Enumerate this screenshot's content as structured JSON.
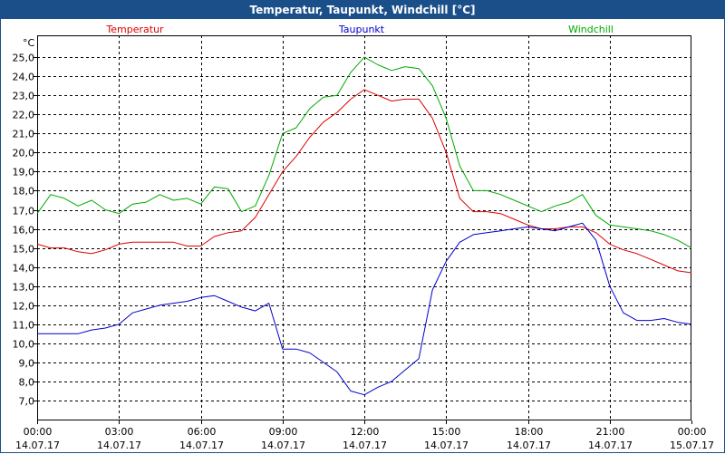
{
  "window": {
    "title": "Temperatur, Taupunkt, Windchill [°C]"
  },
  "chart_data": {
    "type": "line",
    "title": "Temperatur, Taupunkt, Windchill [°C]",
    "ylabel": "°C",
    "ylim": [
      6.0,
      26.0
    ],
    "xlim": [
      0,
      24
    ],
    "grid": true,
    "legend_position": "top",
    "y_ticks": [
      "7,0",
      "8,0",
      "9,0",
      "10,0",
      "11,0",
      "12,0",
      "13,0",
      "14,0",
      "15,0",
      "16,0",
      "17,0",
      "18,0",
      "19,0",
      "20,0",
      "21,0",
      "22,0",
      "23,0",
      "24,0",
      "25,0"
    ],
    "x_ticks": [
      {
        "time": "00:00",
        "date": "14.07.17"
      },
      {
        "time": "03:00",
        "date": "14.07.17"
      },
      {
        "time": "06:00",
        "date": "14.07.17"
      },
      {
        "time": "09:00",
        "date": "14.07.17"
      },
      {
        "time": "12:00",
        "date": "14.07.17"
      },
      {
        "time": "15:00",
        "date": "14.07.17"
      },
      {
        "time": "18:00",
        "date": "14.07.17"
      },
      {
        "time": "21:00",
        "date": "14.07.17"
      },
      {
        "time": "00:00",
        "date": "15.07.17"
      }
    ],
    "series": [
      {
        "name": "Temperatur",
        "color": "#dd0000",
        "points": [
          [
            0,
            15.2
          ],
          [
            0.5,
            15.0
          ],
          [
            1,
            15.0
          ],
          [
            1.5,
            14.8
          ],
          [
            2,
            14.7
          ],
          [
            2.5,
            14.9
          ],
          [
            3,
            15.2
          ],
          [
            3.5,
            15.3
          ],
          [
            4,
            15.3
          ],
          [
            4.5,
            15.3
          ],
          [
            5,
            15.3
          ],
          [
            5.5,
            15.1
          ],
          [
            6,
            15.1
          ],
          [
            6.5,
            15.6
          ],
          [
            7,
            15.8
          ],
          [
            7.5,
            15.9
          ],
          [
            8,
            16.6
          ],
          [
            8.5,
            17.8
          ],
          [
            9,
            19.0
          ],
          [
            9.5,
            19.8
          ],
          [
            10,
            20.8
          ],
          [
            10.5,
            21.6
          ],
          [
            11,
            22.1
          ],
          [
            11.5,
            22.8
          ],
          [
            12,
            23.3
          ],
          [
            12.5,
            23.0
          ],
          [
            13,
            22.7
          ],
          [
            13.5,
            22.8
          ],
          [
            14,
            22.8
          ],
          [
            14.5,
            21.8
          ],
          [
            15,
            20.0
          ],
          [
            15.5,
            17.6
          ],
          [
            16,
            16.9
          ],
          [
            16.5,
            16.9
          ],
          [
            17,
            16.8
          ],
          [
            17.5,
            16.5
          ],
          [
            18,
            16.2
          ],
          [
            18.5,
            16.0
          ],
          [
            19,
            16.0
          ],
          [
            19.5,
            16.1
          ],
          [
            20,
            16.1
          ],
          [
            20.5,
            15.8
          ],
          [
            21,
            15.2
          ],
          [
            21.5,
            14.9
          ],
          [
            22,
            14.7
          ],
          [
            22.5,
            14.4
          ],
          [
            23,
            14.1
          ],
          [
            23.5,
            13.8
          ],
          [
            24,
            13.7
          ]
        ]
      },
      {
        "name": "Taupunkt",
        "color": "#0000cc",
        "points": [
          [
            0,
            10.5
          ],
          [
            0.5,
            10.5
          ],
          [
            1,
            10.5
          ],
          [
            1.5,
            10.5
          ],
          [
            2,
            10.7
          ],
          [
            2.5,
            10.8
          ],
          [
            3,
            11.0
          ],
          [
            3.5,
            11.6
          ],
          [
            4,
            11.8
          ],
          [
            4.5,
            12.0
          ],
          [
            5,
            12.1
          ],
          [
            5.5,
            12.2
          ],
          [
            6,
            12.4
          ],
          [
            6.5,
            12.5
          ],
          [
            7,
            12.2
          ],
          [
            7.5,
            11.9
          ],
          [
            8,
            11.7
          ],
          [
            8.5,
            12.1
          ],
          [
            9,
            9.7
          ],
          [
            9.5,
            9.7
          ],
          [
            10,
            9.5
          ],
          [
            10.5,
            9.0
          ],
          [
            11,
            8.5
          ],
          [
            11.5,
            7.5
          ],
          [
            12,
            7.3
          ],
          [
            12.5,
            7.7
          ],
          [
            13,
            8.0
          ],
          [
            13.5,
            8.6
          ],
          [
            14,
            9.2
          ],
          [
            14.5,
            12.8
          ],
          [
            15,
            14.3
          ],
          [
            15.5,
            15.3
          ],
          [
            16,
            15.7
          ],
          [
            16.5,
            15.8
          ],
          [
            17,
            15.9
          ],
          [
            17.5,
            16.0
          ],
          [
            18,
            16.1
          ],
          [
            18.5,
            16.0
          ],
          [
            19,
            15.9
          ],
          [
            19.5,
            16.1
          ],
          [
            20,
            16.3
          ],
          [
            20.5,
            15.4
          ],
          [
            21,
            13.0
          ],
          [
            21.5,
            11.6
          ],
          [
            22,
            11.2
          ],
          [
            22.5,
            11.2
          ],
          [
            23,
            11.3
          ],
          [
            23.5,
            11.1
          ],
          [
            24,
            11.0
          ]
        ]
      },
      {
        "name": "Windchill",
        "color": "#00aa00",
        "points": [
          [
            0,
            16.8
          ],
          [
            0.5,
            17.8
          ],
          [
            1,
            17.6
          ],
          [
            1.5,
            17.2
          ],
          [
            2,
            17.5
          ],
          [
            2.5,
            17.0
          ],
          [
            3,
            16.8
          ],
          [
            3.5,
            17.3
          ],
          [
            4,
            17.4
          ],
          [
            4.5,
            17.8
          ],
          [
            5,
            17.5
          ],
          [
            5.5,
            17.6
          ],
          [
            6,
            17.3
          ],
          [
            6.5,
            18.2
          ],
          [
            7,
            18.1
          ],
          [
            7.5,
            16.9
          ],
          [
            8,
            17.2
          ],
          [
            8.5,
            18.8
          ],
          [
            9,
            21.0
          ],
          [
            9.5,
            21.3
          ],
          [
            10,
            22.3
          ],
          [
            10.5,
            22.9
          ],
          [
            11,
            23.0
          ],
          [
            11.5,
            24.2
          ],
          [
            12,
            25.0
          ],
          [
            12.5,
            24.6
          ],
          [
            13,
            24.3
          ],
          [
            13.5,
            24.5
          ],
          [
            14,
            24.4
          ],
          [
            14.5,
            23.5
          ],
          [
            15,
            21.8
          ],
          [
            15.5,
            19.3
          ],
          [
            16,
            18.0
          ],
          [
            16.5,
            18.0
          ],
          [
            17,
            17.8
          ],
          [
            17.5,
            17.5
          ],
          [
            18,
            17.2
          ],
          [
            18.5,
            16.9
          ],
          [
            19,
            17.2
          ],
          [
            19.5,
            17.4
          ],
          [
            20,
            17.8
          ],
          [
            20.5,
            16.7
          ],
          [
            21,
            16.2
          ],
          [
            21.5,
            16.1
          ],
          [
            22,
            16.0
          ],
          [
            22.5,
            15.9
          ],
          [
            23,
            15.7
          ],
          [
            23.5,
            15.4
          ],
          [
            24,
            15.0
          ]
        ]
      }
    ]
  }
}
